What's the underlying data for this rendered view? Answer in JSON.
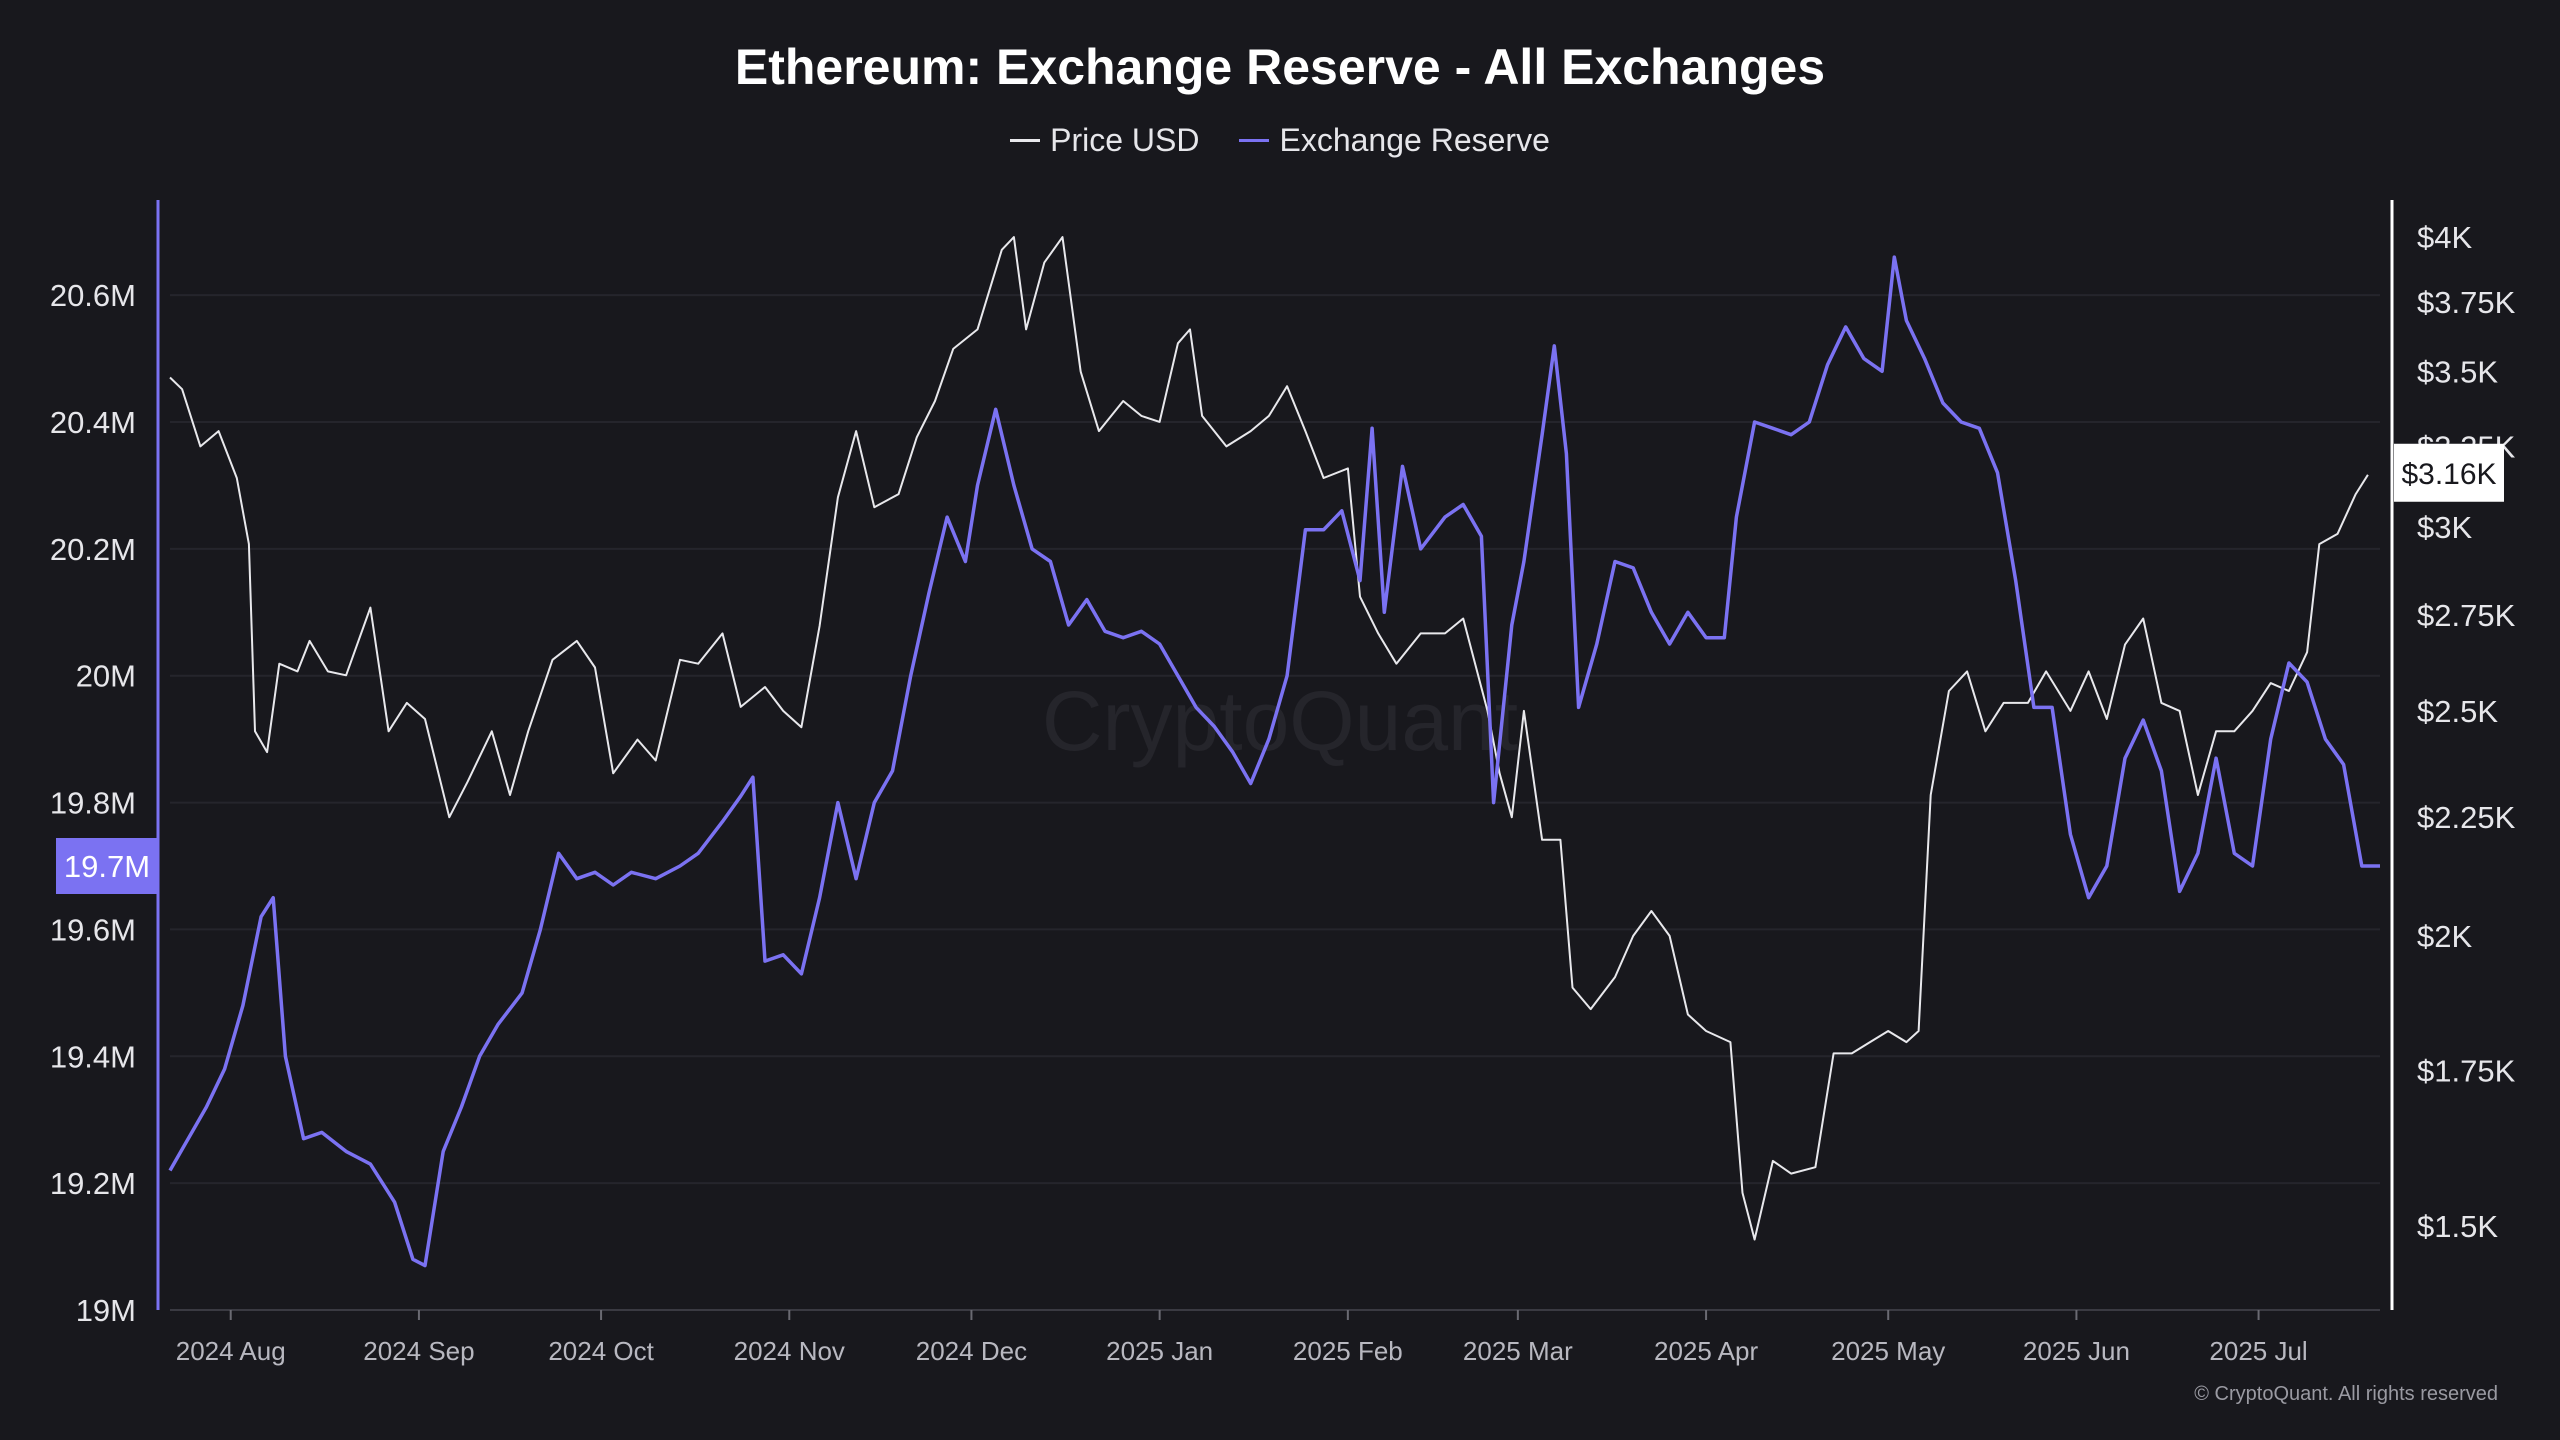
{
  "chart_data": {
    "type": "line",
    "title": "Ethereum: Exchange Reserve - All Exchanges",
    "watermark": "CryptoQuant",
    "copyright": "© CryptoQuant. All rights reserved",
    "x_tick_labels": [
      "2024 Aug",
      "2024 Sep",
      "2024 Oct",
      "2024 Nov",
      "2024 Dec",
      "2025 Jan",
      "2025 Feb",
      "2025 Mar",
      "2025 Apr",
      "2025 May",
      "2025 Jun",
      "2025 Jul"
    ],
    "x_tick_dates": [
      "2024-08-01",
      "2024-09-01",
      "2024-10-01",
      "2024-11-01",
      "2024-12-01",
      "2025-01-01",
      "2025-02-01",
      "2025-03-01",
      "2025-04-01",
      "2025-05-01",
      "2025-06-01",
      "2025-07-01"
    ],
    "x_range": [
      "2024-07-22",
      "2025-07-21"
    ],
    "y_left": {
      "min": 19000000,
      "max": 20750000,
      "tick_values": [
        19000000,
        19200000,
        19400000,
        19600000,
        19800000,
        20000000,
        20200000,
        20400000,
        20600000
      ],
      "tick_labels": [
        "19M",
        "19.2M",
        "19.4M",
        "19.6M",
        "19.8M",
        "20M",
        "20.2M",
        "20.4M",
        "20.6M"
      ],
      "current_value_label": "19.7M",
      "current_value": 19700000
    },
    "y_right": {
      "scale": "log",
      "min": 1380,
      "max": 4150,
      "tick_values": [
        1500,
        1750,
        2000,
        2250,
        2500,
        2750,
        3000,
        3250,
        3500,
        3750,
        4000
      ],
      "tick_labels": [
        "$1.5K",
        "$1.75K",
        "$2K",
        "$2.25K",
        "$2.5K",
        "$2.75K",
        "$3K",
        "$3.25K",
        "$3.5K",
        "$3.75K",
        "$4K"
      ],
      "current_value_label": "$3.16K",
      "current_value": 3160
    },
    "grid": true,
    "legend_position": "top-center",
    "series": [
      {
        "name": "Price USD",
        "axis": "right",
        "color": "#e8e8ec",
        "points": [
          [
            "2024-07-22",
            3480
          ],
          [
            "2024-07-24",
            3440
          ],
          [
            "2024-07-27",
            3250
          ],
          [
            "2024-07-30",
            3300
          ],
          [
            "2024-08-02",
            3150
          ],
          [
            "2024-08-04",
            2950
          ],
          [
            "2024-08-05",
            2450
          ],
          [
            "2024-08-07",
            2400
          ],
          [
            "2024-08-09",
            2620
          ],
          [
            "2024-08-12",
            2600
          ],
          [
            "2024-08-14",
            2680
          ],
          [
            "2024-08-17",
            2600
          ],
          [
            "2024-08-20",
            2590
          ],
          [
            "2024-08-24",
            2770
          ],
          [
            "2024-08-27",
            2450
          ],
          [
            "2024-08-30",
            2520
          ],
          [
            "2024-09-02",
            2480
          ],
          [
            "2024-09-06",
            2250
          ],
          [
            "2024-09-09",
            2330
          ],
          [
            "2024-09-13",
            2450
          ],
          [
            "2024-09-16",
            2300
          ],
          [
            "2024-09-19",
            2450
          ],
          [
            "2024-09-23",
            2630
          ],
          [
            "2024-09-27",
            2680
          ],
          [
            "2024-09-30",
            2610
          ],
          [
            "2024-10-03",
            2350
          ],
          [
            "2024-10-07",
            2430
          ],
          [
            "2024-10-10",
            2380
          ],
          [
            "2024-10-14",
            2630
          ],
          [
            "2024-10-17",
            2620
          ],
          [
            "2024-10-21",
            2700
          ],
          [
            "2024-10-24",
            2510
          ],
          [
            "2024-10-28",
            2560
          ],
          [
            "2024-10-31",
            2500
          ],
          [
            "2024-11-03",
            2460
          ],
          [
            "2024-11-06",
            2720
          ],
          [
            "2024-11-09",
            3090
          ],
          [
            "2024-11-12",
            3300
          ],
          [
            "2024-11-15",
            3060
          ],
          [
            "2024-11-19",
            3100
          ],
          [
            "2024-11-22",
            3280
          ],
          [
            "2024-11-25",
            3400
          ],
          [
            "2024-11-28",
            3580
          ],
          [
            "2024-12-02",
            3650
          ],
          [
            "2024-12-06",
            3950
          ],
          [
            "2024-12-08",
            4000
          ],
          [
            "2024-12-10",
            3650
          ],
          [
            "2024-12-13",
            3900
          ],
          [
            "2024-12-16",
            4000
          ],
          [
            "2024-12-19",
            3500
          ],
          [
            "2024-12-22",
            3300
          ],
          [
            "2024-12-26",
            3400
          ],
          [
            "2024-12-29",
            3350
          ],
          [
            "2025-01-01",
            3330
          ],
          [
            "2025-01-04",
            3600
          ],
          [
            "2025-01-06",
            3650
          ],
          [
            "2025-01-08",
            3350
          ],
          [
            "2025-01-12",
            3250
          ],
          [
            "2025-01-16",
            3300
          ],
          [
            "2025-01-19",
            3350
          ],
          [
            "2025-01-22",
            3450
          ],
          [
            "2025-01-25",
            3300
          ],
          [
            "2025-01-28",
            3150
          ],
          [
            "2025-02-01",
            3180
          ],
          [
            "2025-02-03",
            2800
          ],
          [
            "2025-02-06",
            2700
          ],
          [
            "2025-02-09",
            2620
          ],
          [
            "2025-02-13",
            2700
          ],
          [
            "2025-02-17",
            2700
          ],
          [
            "2025-02-20",
            2740
          ],
          [
            "2025-02-24",
            2500
          ],
          [
            "2025-02-26",
            2350
          ],
          [
            "2025-02-28",
            2250
          ],
          [
            "2025-03-02",
            2500
          ],
          [
            "2025-03-05",
            2200
          ],
          [
            "2025-03-08",
            2200
          ],
          [
            "2025-03-10",
            1900
          ],
          [
            "2025-03-13",
            1860
          ],
          [
            "2025-03-17",
            1920
          ],
          [
            "2025-03-20",
            2000
          ],
          [
            "2025-03-23",
            2050
          ],
          [
            "2025-03-26",
            2000
          ],
          [
            "2025-03-29",
            1850
          ],
          [
            "2025-04-01",
            1820
          ],
          [
            "2025-04-05",
            1800
          ],
          [
            "2025-04-07",
            1550
          ],
          [
            "2025-04-09",
            1480
          ],
          [
            "2025-04-12",
            1600
          ],
          [
            "2025-04-15",
            1580
          ],
          [
            "2025-04-19",
            1590
          ],
          [
            "2025-04-22",
            1780
          ],
          [
            "2025-04-25",
            1780
          ],
          [
            "2025-04-28",
            1800
          ],
          [
            "2025-05-01",
            1820
          ],
          [
            "2025-05-04",
            1800
          ],
          [
            "2025-05-06",
            1820
          ],
          [
            "2025-05-08",
            2300
          ],
          [
            "2025-05-11",
            2550
          ],
          [
            "2025-05-14",
            2600
          ],
          [
            "2025-05-17",
            2450
          ],
          [
            "2025-05-20",
            2520
          ],
          [
            "2025-05-24",
            2520
          ],
          [
            "2025-05-27",
            2600
          ],
          [
            "2025-05-31",
            2500
          ],
          [
            "2025-06-03",
            2600
          ],
          [
            "2025-06-06",
            2480
          ],
          [
            "2025-06-09",
            2670
          ],
          [
            "2025-06-12",
            2740
          ],
          [
            "2025-06-15",
            2520
          ],
          [
            "2025-06-18",
            2500
          ],
          [
            "2025-06-21",
            2300
          ],
          [
            "2025-06-24",
            2450
          ],
          [
            "2025-06-27",
            2450
          ],
          [
            "2025-06-30",
            2500
          ],
          [
            "2025-07-03",
            2570
          ],
          [
            "2025-07-06",
            2550
          ],
          [
            "2025-07-09",
            2650
          ],
          [
            "2025-07-11",
            2950
          ],
          [
            "2025-07-14",
            2980
          ],
          [
            "2025-07-17",
            3100
          ],
          [
            "2025-07-19",
            3160
          ]
        ]
      },
      {
        "name": "Exchange Reserve",
        "axis": "left",
        "color": "#7b72f2",
        "points": [
          [
            "2024-07-22",
            19220000
          ],
          [
            "2024-07-25",
            19270000
          ],
          [
            "2024-07-28",
            19320000
          ],
          [
            "2024-07-31",
            19380000
          ],
          [
            "2024-08-03",
            19480000
          ],
          [
            "2024-08-06",
            19620000
          ],
          [
            "2024-08-08",
            19650000
          ],
          [
            "2024-08-10",
            19400000
          ],
          [
            "2024-08-13",
            19270000
          ],
          [
            "2024-08-16",
            19280000
          ],
          [
            "2024-08-20",
            19250000
          ],
          [
            "2024-08-24",
            19230000
          ],
          [
            "2024-08-28",
            19170000
          ],
          [
            "2024-08-31",
            19080000
          ],
          [
            "2024-09-02",
            19070000
          ],
          [
            "2024-09-05",
            19250000
          ],
          [
            "2024-09-08",
            19320000
          ],
          [
            "2024-09-11",
            19400000
          ],
          [
            "2024-09-14",
            19450000
          ],
          [
            "2024-09-18",
            19500000
          ],
          [
            "2024-09-21",
            19600000
          ],
          [
            "2024-09-24",
            19720000
          ],
          [
            "2024-09-27",
            19680000
          ],
          [
            "2024-09-30",
            19690000
          ],
          [
            "2024-10-03",
            19670000
          ],
          [
            "2024-10-06",
            19690000
          ],
          [
            "2024-10-10",
            19680000
          ],
          [
            "2024-10-14",
            19700000
          ],
          [
            "2024-10-17",
            19720000
          ],
          [
            "2024-10-21",
            19770000
          ],
          [
            "2024-10-24",
            19810000
          ],
          [
            "2024-10-26",
            19840000
          ],
          [
            "2024-10-28",
            19550000
          ],
          [
            "2024-10-31",
            19560000
          ],
          [
            "2024-11-03",
            19530000
          ],
          [
            "2024-11-06",
            19650000
          ],
          [
            "2024-11-09",
            19800000
          ],
          [
            "2024-11-12",
            19680000
          ],
          [
            "2024-11-15",
            19800000
          ],
          [
            "2024-11-18",
            19850000
          ],
          [
            "2024-11-21",
            20000000
          ],
          [
            "2024-11-24",
            20130000
          ],
          [
            "2024-11-27",
            20250000
          ],
          [
            "2024-11-30",
            20180000
          ],
          [
            "2024-12-02",
            20300000
          ],
          [
            "2024-12-05",
            20420000
          ],
          [
            "2024-12-08",
            20300000
          ],
          [
            "2024-12-11",
            20200000
          ],
          [
            "2024-12-14",
            20180000
          ],
          [
            "2024-12-17",
            20080000
          ],
          [
            "2024-12-20",
            20120000
          ],
          [
            "2024-12-23",
            20070000
          ],
          [
            "2024-12-26",
            20060000
          ],
          [
            "2024-12-29",
            20070000
          ],
          [
            "2025-01-01",
            20050000
          ],
          [
            "2025-01-04",
            20000000
          ],
          [
            "2025-01-07",
            19950000
          ],
          [
            "2025-01-10",
            19920000
          ],
          [
            "2025-01-13",
            19880000
          ],
          [
            "2025-01-16",
            19830000
          ],
          [
            "2025-01-19",
            19900000
          ],
          [
            "2025-01-22",
            20000000
          ],
          [
            "2025-01-25",
            20230000
          ],
          [
            "2025-01-28",
            20230000
          ],
          [
            "2025-01-31",
            20260000
          ],
          [
            "2025-02-03",
            20150000
          ],
          [
            "2025-02-05",
            20390000
          ],
          [
            "2025-02-07",
            20100000
          ],
          [
            "2025-02-10",
            20330000
          ],
          [
            "2025-02-13",
            20200000
          ],
          [
            "2025-02-17",
            20250000
          ],
          [
            "2025-02-20",
            20270000
          ],
          [
            "2025-02-23",
            20220000
          ],
          [
            "2025-02-25",
            19800000
          ],
          [
            "2025-02-28",
            20080000
          ],
          [
            "2025-03-02",
            20180000
          ],
          [
            "2025-03-05",
            20380000
          ],
          [
            "2025-03-07",
            20520000
          ],
          [
            "2025-03-09",
            20350000
          ],
          [
            "2025-03-11",
            19950000
          ],
          [
            "2025-03-14",
            20050000
          ],
          [
            "2025-03-17",
            20180000
          ],
          [
            "2025-03-20",
            20170000
          ],
          [
            "2025-03-23",
            20100000
          ],
          [
            "2025-03-26",
            20050000
          ],
          [
            "2025-03-29",
            20100000
          ],
          [
            "2025-04-01",
            20060000
          ],
          [
            "2025-04-04",
            20060000
          ],
          [
            "2025-04-06",
            20250000
          ],
          [
            "2025-04-09",
            20400000
          ],
          [
            "2025-04-12",
            20390000
          ],
          [
            "2025-04-15",
            20380000
          ],
          [
            "2025-04-18",
            20400000
          ],
          [
            "2025-04-21",
            20490000
          ],
          [
            "2025-04-24",
            20550000
          ],
          [
            "2025-04-27",
            20500000
          ],
          [
            "2025-04-30",
            20480000
          ],
          [
            "2025-05-02",
            20660000
          ],
          [
            "2025-05-04",
            20560000
          ],
          [
            "2025-05-07",
            20500000
          ],
          [
            "2025-05-10",
            20430000
          ],
          [
            "2025-05-13",
            20400000
          ],
          [
            "2025-05-16",
            20390000
          ],
          [
            "2025-05-19",
            20320000
          ],
          [
            "2025-05-22",
            20150000
          ],
          [
            "2025-05-25",
            19950000
          ],
          [
            "2025-05-28",
            19950000
          ],
          [
            "2025-05-31",
            19750000
          ],
          [
            "2025-06-03",
            19650000
          ],
          [
            "2025-06-06",
            19700000
          ],
          [
            "2025-06-09",
            19870000
          ],
          [
            "2025-06-12",
            19930000
          ],
          [
            "2025-06-15",
            19850000
          ],
          [
            "2025-06-18",
            19660000
          ],
          [
            "2025-06-21",
            19720000
          ],
          [
            "2025-06-24",
            19870000
          ],
          [
            "2025-06-27",
            19720000
          ],
          [
            "2025-06-30",
            19700000
          ],
          [
            "2025-07-03",
            19900000
          ],
          [
            "2025-07-06",
            20020000
          ],
          [
            "2025-07-09",
            19990000
          ],
          [
            "2025-07-12",
            19900000
          ],
          [
            "2025-07-15",
            19860000
          ],
          [
            "2025-07-18",
            19700000
          ],
          [
            "2025-07-21",
            19700000
          ]
        ]
      }
    ]
  }
}
